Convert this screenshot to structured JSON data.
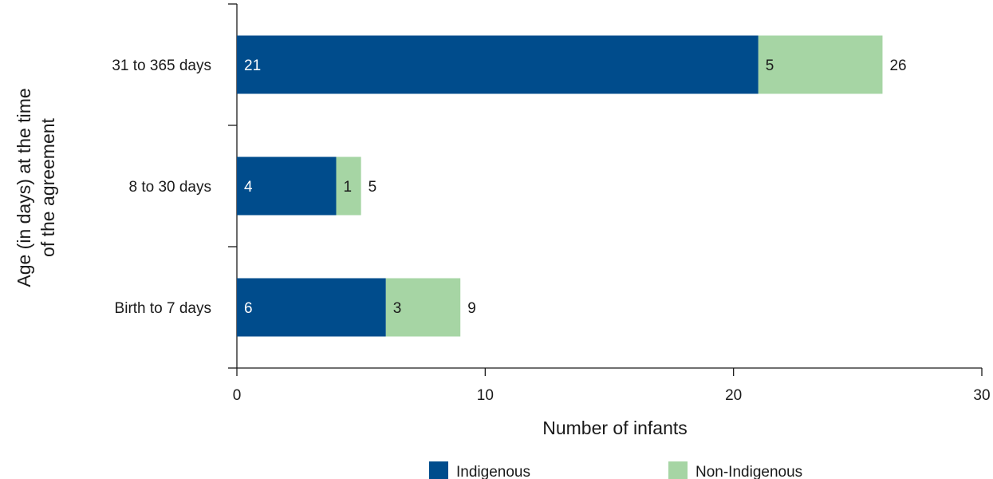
{
  "chart_data": {
    "type": "bar",
    "orientation": "horizontal",
    "stacked": true,
    "categories": [
      "31 to 365 days",
      "8 to 30 days",
      "Birth to 7 days"
    ],
    "series": [
      {
        "name": "Indigenous",
        "values": [
          21,
          4,
          6
        ],
        "color": "#004c8c"
      },
      {
        "name": "Non-Indigenous",
        "values": [
          5,
          1,
          3
        ],
        "color": "#a6d5a4"
      }
    ],
    "totals": [
      26,
      5,
      9
    ],
    "xlabel": "Number of infants",
    "ylabel": [
      "Age (in days) at the time",
      "of the agreement"
    ],
    "xlim": [
      0,
      30
    ],
    "xticks": [
      0,
      10,
      20,
      30
    ],
    "grid": false,
    "legend_position": "bottom"
  }
}
